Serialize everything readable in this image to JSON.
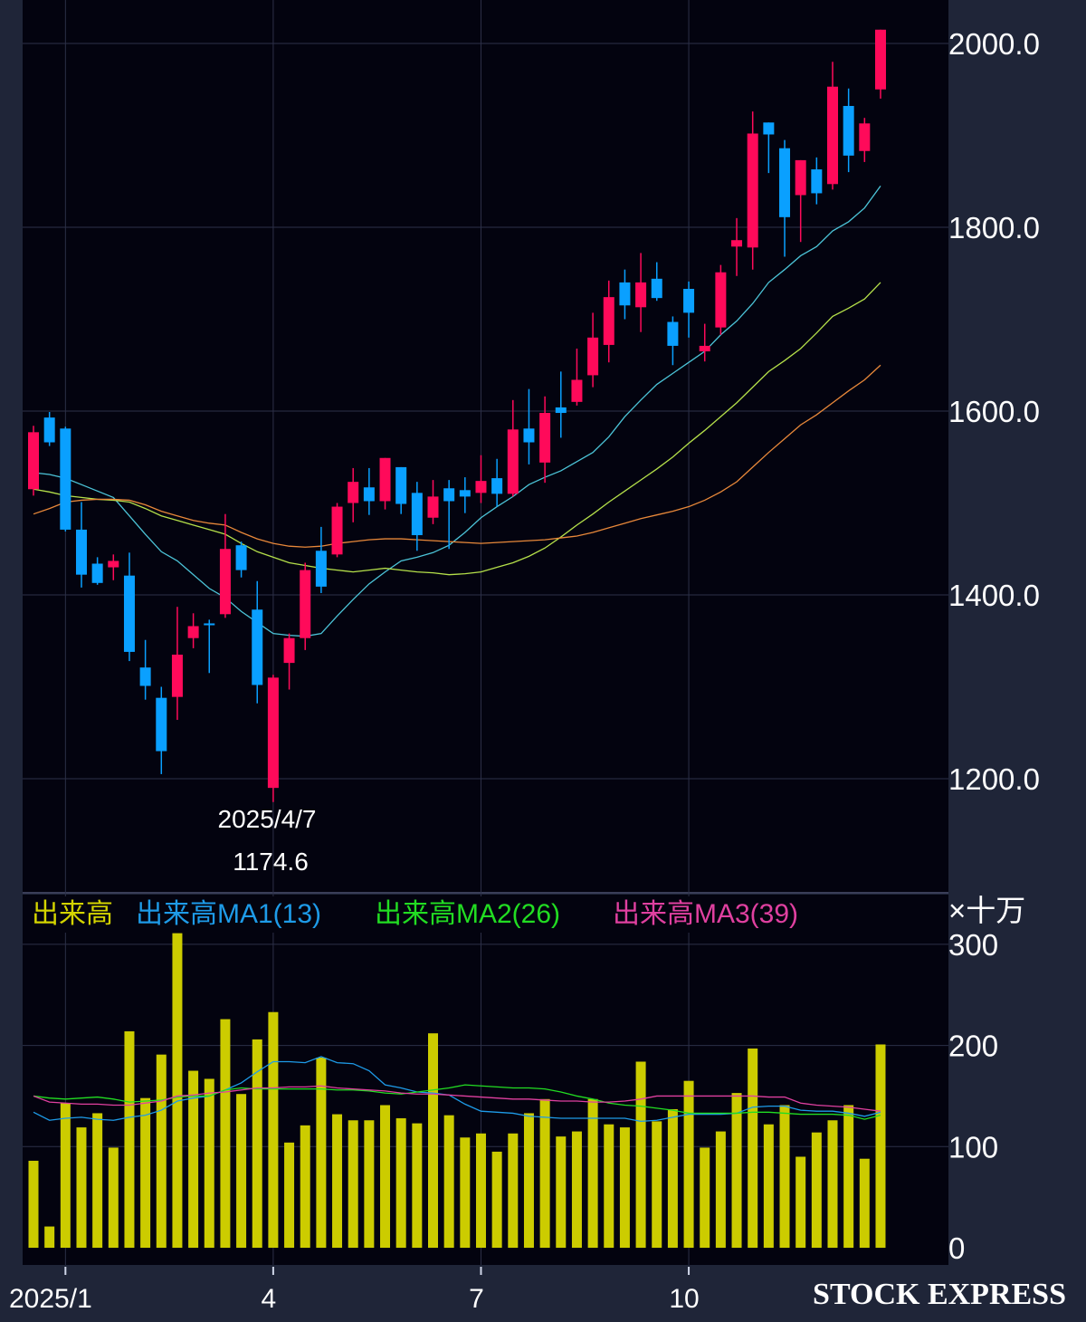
{
  "chart_data": {
    "type": "candlestick",
    "price_panel": {
      "ylim": [
        1080,
        2050
      ],
      "yticks": [
        "1200.0",
        "1400.0",
        "1600.0",
        "1800.0",
        "2000.0"
      ],
      "ytick_values": [
        1200,
        1400,
        1600,
        1800,
        2000
      ],
      "grid": true,
      "up_color": "#ff0a5a",
      "down_color": "#0aa0ff",
      "candles": [
        [
          1515,
          1584,
          1508,
          1577
        ],
        [
          1593,
          1599,
          1562,
          1566
        ],
        [
          1581,
          1583,
          1469,
          1471
        ],
        [
          1471,
          1501,
          1408,
          1422
        ],
        [
          1434,
          1441,
          1411,
          1413
        ],
        [
          1430,
          1444,
          1416,
          1437
        ],
        [
          1421,
          1446,
          1328,
          1338
        ],
        [
          1321,
          1351,
          1286,
          1301
        ],
        [
          1288,
          1300,
          1205,
          1230
        ],
        [
          1289,
          1387,
          1264,
          1335
        ],
        [
          1353,
          1380,
          1342,
          1366
        ],
        [
          1369,
          1373,
          1315,
          1367
        ],
        [
          1379,
          1488,
          1375,
          1450
        ],
        [
          1454,
          1458,
          1419,
          1427
        ],
        [
          1384,
          1415,
          1282,
          1302
        ],
        [
          1190,
          1313,
          1174.6,
          1310
        ],
        [
          1326,
          1358,
          1297,
          1353
        ],
        [
          1353,
          1435,
          1340,
          1427
        ],
        [
          1448,
          1474,
          1402,
          1409
        ],
        [
          1444,
          1500,
          1441,
          1496
        ],
        [
          1500,
          1538,
          1479,
          1523
        ],
        [
          1517,
          1538,
          1487,
          1502
        ],
        [
          1502,
          1549,
          1493,
          1549
        ],
        [
          1539,
          1539,
          1488,
          1499
        ],
        [
          1511,
          1523,
          1448,
          1465
        ],
        [
          1484,
          1525,
          1477,
          1507
        ],
        [
          1516,
          1525,
          1450,
          1502
        ],
        [
          1514,
          1528,
          1489,
          1507
        ],
        [
          1511,
          1552,
          1500,
          1524
        ],
        [
          1527,
          1548,
          1496,
          1510
        ],
        [
          1510,
          1612,
          1507,
          1580
        ],
        [
          1581,
          1624,
          1542,
          1566
        ],
        [
          1544,
          1616,
          1522,
          1598
        ],
        [
          1604,
          1643,
          1571,
          1598
        ],
        [
          1610,
          1668,
          1606,
          1634
        ],
        [
          1639,
          1707,
          1626,
          1680
        ],
        [
          1672,
          1742,
          1653,
          1724
        ],
        [
          1740,
          1754,
          1700,
          1715
        ],
        [
          1713,
          1772,
          1686,
          1740
        ],
        [
          1744,
          1762,
          1720,
          1723
        ],
        [
          1697,
          1703,
          1650,
          1671
        ],
        [
          1733,
          1741,
          1680,
          1707
        ],
        [
          1665,
          1695,
          1654,
          1671
        ],
        [
          1691,
          1759,
          1683,
          1751
        ],
        [
          1779,
          1810,
          1747,
          1786
        ],
        [
          1778,
          1926,
          1754,
          1902
        ],
        [
          1914,
          1914,
          1859,
          1901
        ],
        [
          1886,
          1895,
          1768,
          1811
        ],
        [
          1835,
          1873,
          1784,
          1873
        ],
        [
          1863,
          1876,
          1825,
          1837
        ],
        [
          1847,
          1980,
          1841,
          1953
        ],
        [
          1932,
          1951,
          1860,
          1878
        ],
        [
          1883,
          1919,
          1871,
          1913
        ],
        [
          1950,
          2015,
          1940,
          2015
        ]
      ],
      "ohlc_order": [
        "open",
        "high",
        "low",
        "close"
      ],
      "moving_averages": [
        {
          "color": "#4cc4d8",
          "values": [
            1533,
            1531,
            1527,
            1520,
            1513,
            1506,
            1486,
            1466,
            1447,
            1437,
            1422,
            1407,
            1397,
            1382,
            1370,
            1358,
            1356,
            1355,
            1358,
            1377,
            1395,
            1412,
            1425,
            1437,
            1441,
            1446,
            1454,
            1468,
            1484,
            1496,
            1507,
            1520,
            1528,
            1535,
            1545,
            1555,
            1572,
            1594,
            1612,
            1629,
            1641,
            1653,
            1665,
            1683,
            1698,
            1717,
            1740,
            1754,
            1769,
            1779,
            1796,
            1806,
            1821,
            1845
          ]
        },
        {
          "color": "#b5e04a",
          "values": [
            1515,
            1512,
            1508,
            1506,
            1504,
            1503,
            1501,
            1494,
            1486,
            1481,
            1476,
            1471,
            1466,
            1456,
            1447,
            1441,
            1435,
            1432,
            1429,
            1427,
            1425,
            1427,
            1429,
            1427,
            1425,
            1424,
            1422,
            1423,
            1425,
            1430,
            1435,
            1442,
            1451,
            1463,
            1476,
            1488,
            1501,
            1513,
            1525,
            1537,
            1550,
            1565,
            1579,
            1594,
            1609,
            1626,
            1643,
            1655,
            1668,
            1685,
            1703,
            1712,
            1722,
            1740
          ]
        },
        {
          "color": "#e8883a",
          "values": [
            1488,
            1494,
            1501,
            1503,
            1504,
            1504,
            1503,
            1498,
            1491,
            1486,
            1481,
            1478,
            1476,
            1468,
            1461,
            1456,
            1453,
            1452,
            1453,
            1456,
            1458,
            1460,
            1461,
            1461,
            1460,
            1459,
            1458,
            1457,
            1456,
            1457,
            1458,
            1459,
            1460,
            1462,
            1464,
            1468,
            1473,
            1478,
            1483,
            1487,
            1491,
            1496,
            1503,
            1512,
            1523,
            1539,
            1555,
            1570,
            1585,
            1596,
            1609,
            1622,
            1634,
            1650
          ]
        }
      ],
      "annotation": {
        "date": "2025/4/7",
        "value": "1174.6"
      }
    },
    "volume_panel": {
      "unit": "×十万",
      "ylim": [
        0,
        300
      ],
      "yticks": [
        "0",
        "100",
        "200",
        "300"
      ],
      "ytick_values": [
        0,
        100,
        200,
        300
      ],
      "bar_color": "#cccc00",
      "values": [
        86,
        21,
        143,
        119,
        133,
        99,
        214,
        148,
        191,
        311,
        175,
        167,
        226,
        152,
        206,
        233,
        104,
        121,
        188,
        132,
        126,
        126,
        141,
        128,
        123,
        212,
        131,
        109,
        113,
        95,
        113,
        133,
        147,
        110,
        115,
        147,
        122,
        119,
        184,
        125,
        137,
        165,
        99,
        115,
        153,
        197,
        122,
        141,
        90,
        114,
        126,
        141,
        88,
        201
      ],
      "legend": [
        {
          "label": "出来高",
          "color": "#d4d400"
        },
        {
          "label": "出来高MA1(13)",
          "color": "#1e9be8"
        },
        {
          "label": "出来高MA2(26)",
          "color": "#22dd22"
        },
        {
          "label": "出来高MA3(39)",
          "color": "#e040a0"
        }
      ],
      "moving_averages": [
        {
          "name": "出来高MA1(13)",
          "color": "#1e9be8",
          "values": [
            134,
            126,
            128,
            129,
            127,
            126,
            129,
            131,
            136,
            145,
            148,
            150,
            156,
            163,
            174,
            184,
            184,
            183,
            189,
            183,
            182,
            175,
            161,
            158,
            154,
            153,
            151,
            142,
            135,
            134,
            133,
            130,
            129,
            128,
            128,
            128,
            128,
            128,
            125,
            126,
            129,
            132,
            132,
            132,
            133,
            139,
            140,
            140,
            136,
            135,
            135,
            133,
            130,
            134
          ]
        },
        {
          "name": "出来高MA2(26)",
          "color": "#22dd22",
          "values": [
            150,
            148,
            147,
            148,
            149,
            147,
            144,
            145,
            146,
            149,
            150,
            150,
            156,
            158,
            157,
            157,
            157,
            157,
            157,
            156,
            156,
            155,
            153,
            152,
            154,
            156,
            158,
            161,
            160,
            159,
            158,
            158,
            157,
            154,
            150,
            147,
            143,
            141,
            140,
            138,
            136,
            133,
            133,
            133,
            133,
            134,
            134,
            133,
            132,
            132,
            132,
            131,
            127,
            131
          ]
        },
        {
          "name": "出来高MA3(39)",
          "color": "#e040a0",
          "values": [
            150,
            144,
            143,
            142,
            142,
            141,
            141,
            143,
            145,
            150,
            151,
            153,
            154,
            156,
            158,
            158,
            159,
            159,
            160,
            158,
            157,
            156,
            155,
            153,
            152,
            152,
            151,
            150,
            149,
            148,
            147,
            147,
            146,
            145,
            145,
            144,
            144,
            145,
            147,
            150,
            150,
            150,
            150,
            150,
            150,
            150,
            149,
            149,
            143,
            141,
            140,
            139,
            137,
            135
          ]
        }
      ]
    },
    "x_axis": {
      "labels": [
        "2025/1",
        "4",
        "7",
        "10"
      ],
      "label_candle_index": [
        2,
        15,
        28,
        41
      ]
    }
  },
  "watermark": "STOCK EXPRESS"
}
